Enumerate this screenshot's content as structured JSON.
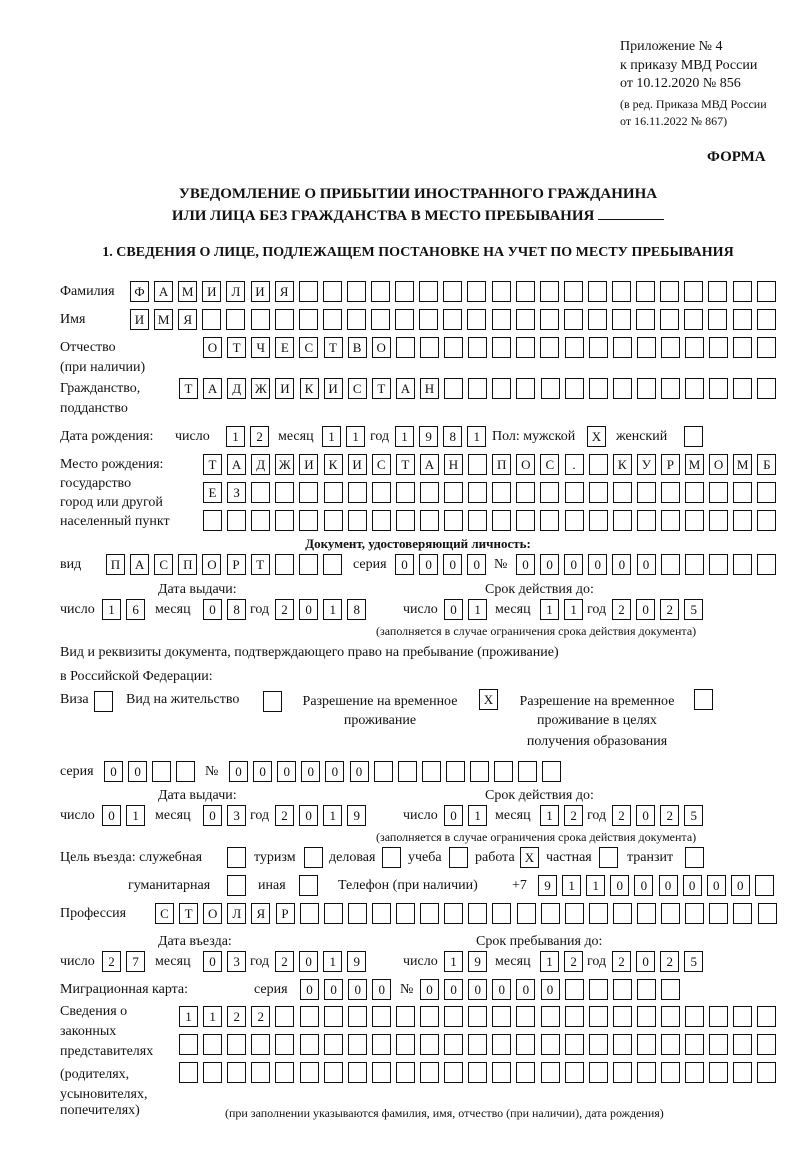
{
  "header": {
    "appendix": [
      "Приложение № 4",
      "к приказу МВД России",
      "от 10.12.2020 № 856"
    ],
    "revision": [
      "(в ред. Приказа МВД России",
      "от 16.11.2022 № 867)"
    ],
    "form_label": "ФОРМА",
    "title_line1": "УВЕДОМЛЕНИЕ О ПРИБЫТИИ ИНОСТРАННОГО ГРАЖДАНИНА",
    "title_line2": "ИЛИ ЛИЦА БЕЗ ГРАЖДАНСТВА В МЕСТО ПРЕБЫВАНИЯ"
  },
  "section1": {
    "title": "1. СВЕДЕНИЯ О ЛИЦЕ, ПОДЛЕЖАЩЕМ ПОСТАНОВКЕ НА УЧЕТ ПО МЕСТУ ПРЕБЫВАНИЯ",
    "surname": {
      "label": "Фамилия",
      "cells": [
        "Ф",
        "А",
        "М",
        "И",
        "Л",
        "И",
        "Я",
        "",
        "",
        "",
        "",
        "",
        "",
        "",
        "",
        "",
        "",
        "",
        "",
        "",
        "",
        "",
        "",
        "",
        "",
        "",
        ""
      ]
    },
    "name": {
      "label": "Имя",
      "cells": [
        "И",
        "М",
        "Я",
        "",
        "",
        "",
        "",
        "",
        "",
        "",
        "",
        "",
        "",
        "",
        "",
        "",
        "",
        "",
        "",
        "",
        "",
        "",
        "",
        "",
        "",
        "",
        ""
      ]
    },
    "patronymic": {
      "label1": "Отчество",
      "label2": "(при наличии)",
      "cells": [
        "О",
        "Т",
        "Ч",
        "Е",
        "С",
        "Т",
        "В",
        "О",
        "",
        "",
        "",
        "",
        "",
        "",
        "",
        "",
        "",
        "",
        "",
        "",
        "",
        "",
        "",
        ""
      ]
    },
    "citizenship": {
      "label1": "Гражданство,",
      "label2": "подданство",
      "cells": [
        "Т",
        "А",
        "Д",
        "Ж",
        "И",
        "К",
        "И",
        "С",
        "Т",
        "А",
        "Н",
        "",
        "",
        "",
        "",
        "",
        "",
        "",
        "",
        "",
        "",
        "",
        "",
        "",
        ""
      ]
    },
    "birth_date": {
      "label": "Дата рождения:",
      "day_label": "число",
      "month_label": "месяц",
      "year_label": "год",
      "day": [
        "1",
        "2"
      ],
      "month": [
        "1",
        "1"
      ],
      "year": [
        "1",
        "9",
        "8",
        "1"
      ]
    },
    "sex": {
      "label": "Пол: мужской",
      "male": "X",
      "female_label": "женский",
      "female": ""
    },
    "birth_place": {
      "label1": "Место рождения:",
      "label2": "государство",
      "label3": "город или другой",
      "label4": "населенный пункт",
      "row1": [
        "Т",
        "А",
        "Д",
        "Ж",
        "И",
        "К",
        "И",
        "С",
        "Т",
        "А",
        "Н",
        "",
        "П",
        "О",
        "С",
        ".",
        "",
        "К",
        "У",
        "Р",
        "М",
        "О",
        "М",
        "Б"
      ],
      "row2": [
        "Е",
        "З",
        "",
        "",
        "",
        "",
        "",
        "",
        "",
        "",
        "",
        "",
        "",
        "",
        "",
        "",
        "",
        "",
        "",
        "",
        "",
        "",
        "",
        ""
      ],
      "row3": [
        "",
        "",
        "",
        "",
        "",
        "",
        "",
        "",
        "",
        "",
        "",
        "",
        "",
        "",
        "",
        "",
        "",
        "",
        "",
        "",
        "",
        "",
        "",
        ""
      ]
    },
    "id_doc": {
      "title": "Документ, удостоверяющий личность:",
      "type_label": "вид",
      "type": [
        "П",
        "А",
        "С",
        "П",
        "О",
        "Р",
        "Т",
        "",
        "",
        ""
      ],
      "series_label": "серия",
      "series": [
        "0",
        "0",
        "0",
        "0"
      ],
      "number_label": "№",
      "number": [
        "0",
        "0",
        "0",
        "0",
        "0",
        "0",
        "",
        "",
        "",
        "",
        ""
      ],
      "issue_label": "Дата выдачи:",
      "valid_label": "Срок действия до:",
      "day_label": "число",
      "month_label": "месяц",
      "year_label": "год",
      "issue_day": [
        "1",
        "6"
      ],
      "issue_month": [
        "0",
        "8"
      ],
      "issue_year": [
        "2",
        "0",
        "1",
        "8"
      ],
      "valid_day": [
        "0",
        "1"
      ],
      "valid_month": [
        "1",
        "1"
      ],
      "valid_year": [
        "2",
        "0",
        "2",
        "5"
      ],
      "note": "(заполняется в случае ограничения срока действия документа)"
    },
    "stay_doc": {
      "title1": "Вид и реквизиты документа, подтверждающего право на пребывание (проживание)",
      "title2": "в Российской Федерации:",
      "visa_label": "Виза",
      "visa": [
        ""
      ],
      "residence_label": "Вид на жительство",
      "residence": [
        ""
      ],
      "trp_label1": "Разрешение на временное",
      "trp_label2": "проживание",
      "trp": [
        "X"
      ],
      "trp_edu_label1": "Разрешение на временное",
      "trp_edu_label2": "проживание в целях",
      "trp_edu_label3": "получения образования",
      "trp_edu": [
        ""
      ],
      "series_label": "серия",
      "series": [
        "0",
        "0",
        "",
        ""
      ],
      "number_label": "№",
      "number": [
        "0",
        "0",
        "0",
        "0",
        "0",
        "0",
        "",
        "",
        "",
        "",
        "",
        "",
        "",
        ""
      ],
      "issue_label": "Дата выдачи:",
      "valid_label": "Срок действия до:",
      "day_label": "число",
      "month_label": "месяц",
      "year_label": "год",
      "issue_day": [
        "0",
        "1"
      ],
      "issue_month": [
        "0",
        "3"
      ],
      "issue_year": [
        "2",
        "0",
        "1",
        "9"
      ],
      "valid_day": [
        "0",
        "1"
      ],
      "valid_month": [
        "1",
        "2"
      ],
      "valid_year": [
        "2",
        "0",
        "2",
        "5"
      ],
      "note": "(заполняется в случае ограничения срока действия документа)"
    },
    "purpose": {
      "label": "Цель въезда: служебная",
      "official": [
        ""
      ],
      "tourism_label": "туризм",
      "tourism": [
        ""
      ],
      "business_label": "деловая",
      "business": [
        ""
      ],
      "study_label": "учеба",
      "study": [
        ""
      ],
      "work_label": "работа",
      "work": [
        "X"
      ],
      "private_label": "частная",
      "private": [
        ""
      ],
      "transit_label": "транзит",
      "transit": [
        ""
      ],
      "humanitarian_label": "гуманитарная",
      "humanitarian": [
        ""
      ],
      "other_label": "иная",
      "other": [
        ""
      ]
    },
    "phone": {
      "label": "Телефон (при наличии)",
      "prefix": "+7",
      "cells": [
        "9",
        "1",
        "1",
        "0",
        "0",
        "0",
        "0",
        "0",
        "0",
        ""
      ]
    },
    "profession": {
      "label": "Профессия",
      "cells": [
        "С",
        "Т",
        "О",
        "Л",
        "Я",
        "Р",
        "",
        "",
        "",
        "",
        "",
        "",
        "",
        "",
        "",
        "",
        "",
        "",
        "",
        "",
        "",
        "",
        "",
        "",
        "",
        ""
      ]
    },
    "entry": {
      "entry_label": "Дата въезда:",
      "stay_label": "Срок пребывания до:",
      "day_label": "число",
      "month_label": "месяц",
      "year_label": "год",
      "entry_day": [
        "2",
        "7"
      ],
      "entry_month": [
        "0",
        "3"
      ],
      "entry_year": [
        "2",
        "0",
        "1",
        "9"
      ],
      "stay_day": [
        "1",
        "9"
      ],
      "stay_month": [
        "1",
        "2"
      ],
      "stay_year": [
        "2",
        "0",
        "2",
        "5"
      ]
    },
    "migration_card": {
      "label": "Миграционная карта:",
      "series_label": "серия",
      "series": [
        "0",
        "0",
        "0",
        "0"
      ],
      "number_label": "№",
      "number": [
        "0",
        "0",
        "0",
        "0",
        "0",
        "0",
        "",
        "",
        "",
        "",
        ""
      ]
    },
    "representatives": {
      "label": [
        "Сведения о",
        "законных",
        "представителях",
        "(родителях,",
        "усыновителях,",
        "попечителях)"
      ],
      "row1": [
        "1",
        "1",
        "2",
        "2",
        "",
        "",
        "",
        "",
        "",
        "",
        "",
        "",
        "",
        "",
        "",
        "",
        "",
        "",
        "",
        "",
        "",
        "",
        "",
        "",
        ""
      ],
      "row2": [
        "",
        "",
        "",
        "",
        "",
        "",
        "",
        "",
        "",
        "",
        "",
        "",
        "",
        "",
        "",
        "",
        "",
        "",
        "",
        "",
        "",
        "",
        "",
        "",
        ""
      ],
      "row3": [
        "",
        "",
        "",
        "",
        "",
        "",
        "",
        "",
        "",
        "",
        "",
        "",
        "",
        "",
        "",
        "",
        "",
        "",
        "",
        "",
        "",
        "",
        "",
        "",
        ""
      ],
      "note": "(при заполнении указываются фамилия, имя, отчество (при наличии), дата рождения)"
    }
  }
}
